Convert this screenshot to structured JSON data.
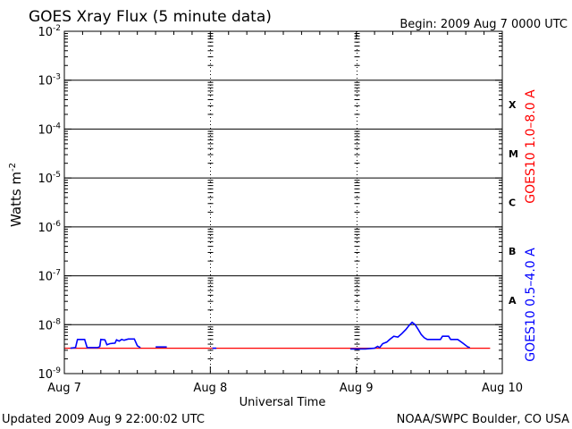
{
  "header": {
    "title": "GOES Xray Flux (5 minute data)",
    "begin": "Begin:  2009 Aug 7 0000 UTC"
  },
  "footer": {
    "updated": "Updated 2009 Aug  9 22:00:02 UTC",
    "source": "NOAA/SWPC Boulder, CO USA"
  },
  "colors": {
    "long_channel": "#ff0000",
    "short_channel": "#0000ff",
    "axis": "#000000"
  },
  "chart_data": {
    "type": "line",
    "title": "GOES Xray Flux (5 minute data)",
    "xlabel": "Universal Time",
    "ylabel_base": "Watts m",
    "ylabel_exp": "-2",
    "yscale": "log",
    "ylim": [
      1e-09,
      0.01
    ],
    "xlim": [
      "2009-08-07",
      "2009-08-10"
    ],
    "y_ticks": [
      {
        "value": 1e-09,
        "base": "10",
        "exp": "-9"
      },
      {
        "value": 1e-08,
        "base": "10",
        "exp": "-8"
      },
      {
        "value": 1e-07,
        "base": "10",
        "exp": "-7"
      },
      {
        "value": 1e-06,
        "base": "10",
        "exp": "-6"
      },
      {
        "value": 1e-05,
        "base": "10",
        "exp": "-5"
      },
      {
        "value": 0.0001,
        "base": "10",
        "exp": "-4"
      },
      {
        "value": 0.001,
        "base": "10",
        "exp": "-3"
      },
      {
        "value": 0.01,
        "base": "10",
        "exp": "-2"
      }
    ],
    "x_ticks": [
      {
        "value": "2009-08-07",
        "label": "Aug 7"
      },
      {
        "value": "2009-08-08",
        "label": "Aug 8"
      },
      {
        "value": "2009-08-09",
        "label": "Aug 9"
      },
      {
        "value": "2009-08-10",
        "label": "Aug 10"
      }
    ],
    "flare_classes": [
      {
        "label": "X",
        "value": 0.000316
      },
      {
        "label": "M",
        "value": 3.16e-05
      },
      {
        "label": "C",
        "value": 3.16e-06
      },
      {
        "label": "B",
        "value": 3.16e-07
      },
      {
        "label": "A",
        "value": 3.16e-08
      }
    ],
    "gridlines": [
      1e-08,
      1e-07,
      1e-06,
      1e-05,
      0.0001,
      0.001
    ],
    "series": [
      {
        "name": "GOES10 1.0–8.0 A",
        "color": "#ff0000",
        "points": [
          [
            "2009-08-07T00:00",
            3.3e-09
          ],
          [
            "2009-08-09T22:00",
            3.3e-09
          ]
        ]
      },
      {
        "name": "GOES10 0.5–4.0 A",
        "color": "#0000ff",
        "segments": [
          [
            [
              "2009-08-07T01:00",
              3.3e-09
            ],
            [
              "2009-08-07T01:50",
              3.4e-09
            ],
            [
              "2009-08-07T02:10",
              5e-09
            ],
            [
              "2009-08-07T03:20",
              5e-09
            ],
            [
              "2009-08-07T03:45",
              3.4e-09
            ],
            [
              "2009-08-07T05:30",
              3.4e-09
            ],
            [
              "2009-08-07T05:50",
              3.6e-09
            ],
            [
              "2009-08-07T06:00",
              5e-09
            ],
            [
              "2009-08-07T06:40",
              4.9e-09
            ],
            [
              "2009-08-07T07:00",
              3.9e-09
            ],
            [
              "2009-08-07T07:30",
              4.1e-09
            ],
            [
              "2009-08-07T08:20",
              4.2e-09
            ],
            [
              "2009-08-07T08:35",
              4.9e-09
            ],
            [
              "2009-08-07T09:00",
              4.6e-09
            ],
            [
              "2009-08-07T09:25",
              5e-09
            ],
            [
              "2009-08-07T09:50",
              4.8e-09
            ],
            [
              "2009-08-07T10:30",
              5.1e-09
            ],
            [
              "2009-08-07T11:30",
              5.1e-09
            ],
            [
              "2009-08-07T12:00",
              3.7e-09
            ],
            [
              "2009-08-07T12:30",
              3.4e-09
            ]
          ],
          [
            [
              "2009-08-07T15:00",
              3.5e-09
            ],
            [
              "2009-08-07T16:50",
              3.5e-09
            ]
          ],
          [
            [
              "2009-08-08T00:20",
              3.3e-09
            ],
            [
              "2009-08-08T01:00",
              3.3e-09
            ]
          ],
          [
            [
              "2009-08-08T23:00",
              3.2e-09
            ],
            [
              "2009-08-09T01:30",
              3.2e-09
            ],
            [
              "2009-08-09T03:00",
              3.3e-09
            ],
            [
              "2009-08-09T03:30",
              3.6e-09
            ],
            [
              "2009-08-09T03:50",
              3.4e-09
            ],
            [
              "2009-08-09T04:20",
              4.1e-09
            ],
            [
              "2009-08-09T05:00",
              4.4e-09
            ],
            [
              "2009-08-09T05:30",
              5e-09
            ],
            [
              "2009-08-09T06:10",
              5.8e-09
            ],
            [
              "2009-08-09T06:50",
              5.6e-09
            ],
            [
              "2009-08-09T07:30",
              6.6e-09
            ],
            [
              "2009-08-09T08:10",
              8e-09
            ],
            [
              "2009-08-09T08:40",
              9.6e-09
            ],
            [
              "2009-08-09T09:10",
              1.12e-08
            ],
            [
              "2009-08-09T09:40",
              1e-08
            ],
            [
              "2009-08-09T10:10",
              8e-09
            ],
            [
              "2009-08-09T10:40",
              6.3e-09
            ],
            [
              "2009-08-09T11:10",
              5.4e-09
            ],
            [
              "2009-08-09T11:40",
              5e-09
            ],
            [
              "2009-08-09T13:50",
              5e-09
            ],
            [
              "2009-08-09T14:10",
              5.8e-09
            ],
            [
              "2009-08-09T15:10",
              5.8e-09
            ],
            [
              "2009-08-09T15:30",
              5e-09
            ],
            [
              "2009-08-09T16:40",
              5e-09
            ],
            [
              "2009-08-09T17:30",
              4.2e-09
            ],
            [
              "2009-08-09T18:20",
              3.5e-09
            ],
            [
              "2009-08-09T18:40",
              3.4e-09
            ]
          ]
        ]
      }
    ]
  }
}
